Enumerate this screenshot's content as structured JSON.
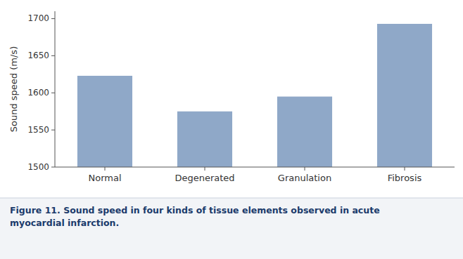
{
  "chart_data": {
    "type": "bar",
    "title": "Figure 11. Sound speed in four kinds of tissue elements observed in acute\nmyocardial infarction.",
    "categories": [
      "Normal",
      "Degenerated",
      "Granulation",
      "Fibrosis"
    ],
    "values": [
      1623,
      1575,
      1595,
      1693
    ],
    "color": "#8fa8c8",
    "ylabel": "Sound speed (m/s)",
    "ylim": [
      1500,
      1710
    ],
    "yticks": [
      1500,
      1550,
      1600,
      1650,
      1700
    ],
    "grid": false
  }
}
